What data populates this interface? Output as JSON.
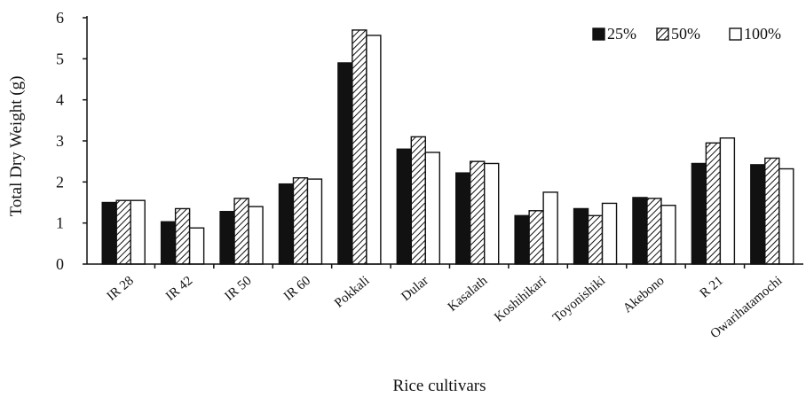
{
  "chart_data": {
    "type": "bar",
    "title": "",
    "xlabel": "Rice cultivars",
    "ylabel": "Total Dry Weight (g)",
    "ylim": [
      0,
      6
    ],
    "yticks": [
      0,
      1,
      2,
      3,
      4,
      5,
      6
    ],
    "grid": false,
    "legend": "top-right",
    "categories": [
      "IR 28",
      "IR 42",
      "IR 50",
      "IR 60",
      "Pokkali",
      "Dular",
      "Kasalath",
      "Koshihikari",
      "Toyonishiki",
      "Akebono",
      "R 21",
      "Owarihatamochi"
    ],
    "series": [
      {
        "name": "25%",
        "fill": "solid-black",
        "values": [
          1.5,
          1.03,
          1.28,
          1.95,
          4.9,
          2.8,
          2.22,
          1.18,
          1.35,
          1.62,
          2.45,
          2.42
        ]
      },
      {
        "name": "50%",
        "fill": "hatched",
        "values": [
          1.55,
          1.35,
          1.6,
          2.1,
          5.7,
          3.1,
          2.5,
          1.3,
          1.18,
          1.6,
          2.95,
          2.58
        ]
      },
      {
        "name": "100%",
        "fill": "white",
        "values": [
          1.55,
          0.88,
          1.4,
          2.07,
          5.57,
          2.72,
          2.45,
          1.75,
          1.48,
          1.43,
          3.07,
          2.32
        ]
      }
    ]
  }
}
